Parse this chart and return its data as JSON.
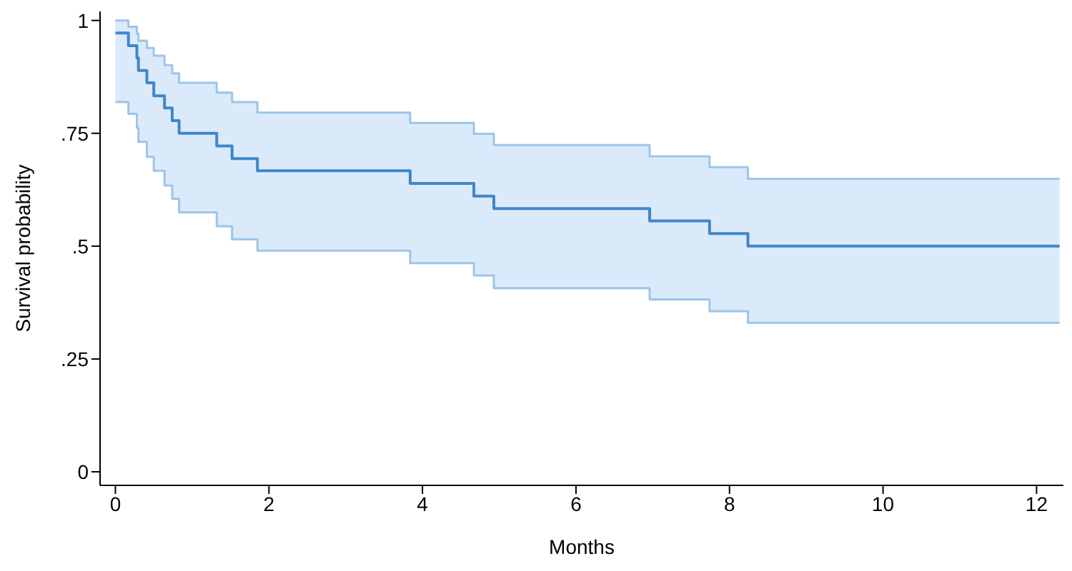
{
  "chart_data": {
    "type": "step",
    "xlabel": "Months",
    "ylabel": "Survival probability",
    "x": [
      0,
      0.17,
      0.28,
      0.3,
      0.41,
      0.5,
      0.64,
      0.74,
      0.83,
      1.32,
      1.52,
      1.85,
      3.84,
      4.67,
      4.93,
      6.96,
      7.74,
      8.24,
      12.3
    ],
    "series": [
      {
        "color": "#3f87c8",
        "values": [
          0.972,
          0.944,
          0.917,
          0.889,
          0.862,
          0.833,
          0.806,
          0.778,
          0.75,
          0.722,
          0.694,
          0.667,
          0.639,
          0.611,
          0.583,
          0.556,
          0.528,
          0.5,
          0.5
        ],
        "lower": [
          0.819,
          0.793,
          0.762,
          0.731,
          0.698,
          0.667,
          0.634,
          0.605,
          0.575,
          0.544,
          0.515,
          0.49,
          0.462,
          0.435,
          0.407,
          0.382,
          0.356,
          0.33,
          0.33
        ],
        "upper": [
          1,
          0.986,
          0.971,
          0.955,
          0.939,
          0.922,
          0.901,
          0.883,
          0.862,
          0.84,
          0.819,
          0.796,
          0.773,
          0.749,
          0.724,
          0.699,
          0.675,
          0.649,
          0.649
        ]
      },
      {
        "color": "#9cc5e8",
        "values": [
          0.819,
          0.793,
          0.762,
          0.731,
          0.698,
          0.667,
          0.634,
          0.605,
          0.575,
          0.544,
          0.515,
          0.49,
          0.462,
          0.435,
          0.407,
          0.382,
          0.356,
          0.33,
          0.33
        ]
      },
      {
        "color": "#9cc5e8",
        "values": [
          1,
          0.986,
          0.971,
          0.955,
          0.939,
          0.922,
          0.901,
          0.883,
          0.862,
          0.84,
          0.819,
          0.796,
          0.773,
          0.749,
          0.724,
          0.699,
          0.675,
          0.649,
          0.649
        ]
      }
    ],
    "xlim": [
      -0.2,
      12.35
    ],
    "xticks": [
      0,
      2,
      4,
      6,
      8,
      10,
      12
    ],
    "ylim": [
      -0.03,
      1.02
    ],
    "yticks": [
      0,
      {
        "value": 0.25,
        "label": ".25"
      },
      {
        "value": 0.5,
        "label": ".5"
      },
      {
        "value": 0.75,
        "label": ".75"
      },
      1
    ],
    "grid": false,
    "legend": false,
    "marker": "none",
    "line_style": "solid"
  }
}
